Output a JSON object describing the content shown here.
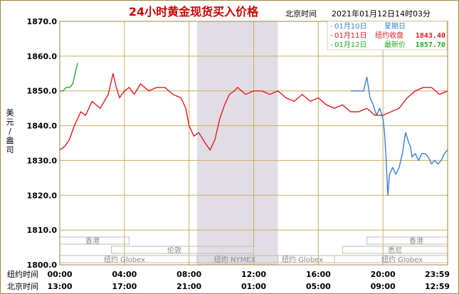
{
  "header": {
    "title": "24小时黄金现货买入价格",
    "timezone_label": "北京时间",
    "timestamp": "2021年01月12日14时03分"
  },
  "legend": [
    {
      "date": "01月10日",
      "label": "星期日",
      "value": "",
      "color": "#3a7fd8"
    },
    {
      "date": "01月11日",
      "label": "纽约收盘",
      "value": "1843.40",
      "color": "#e01b24"
    },
    {
      "date": "01月12日",
      "label": "最新价",
      "value": "1857.70",
      "color": "#22aa22"
    }
  ],
  "axis": {
    "ylabel": "美元/盎司",
    "row1_label": "纽约时间",
    "row2_label": "北京时间"
  },
  "markets": [
    {
      "name": "香港"
    },
    {
      "name": "纽约 Globex"
    },
    {
      "name": "伦敦"
    },
    {
      "name": "纽约 NYMEX"
    },
    {
      "name": "纽约 Globex"
    },
    {
      "name": "香港"
    },
    {
      "name": "悉尼"
    },
    {
      "name": "纽约 Globex"
    }
  ],
  "colors": {
    "frame": "#9a8a40",
    "grid": "#c8b060",
    "shade": "#e2dde5",
    "red": "#e01b24",
    "blue": "#3a7fd8",
    "green": "#22aa22",
    "title": "#cc0000"
  },
  "chart_data": {
    "type": "line",
    "title": "24小时黄金现货买入价格",
    "ylabel": "美元/盎司",
    "ylim": [
      1800,
      1870
    ],
    "yticks": [
      "1870.0",
      "1860.0",
      "1850.0",
      "1840.0",
      "1830.0",
      "1820.0",
      "1810.0",
      "1800.0"
    ],
    "x_unit": "hours since 00:00 New York",
    "xlim": [
      0,
      24
    ],
    "x_ticks_ny": [
      "00:00",
      "04:00",
      "08:00",
      "12:00",
      "16:00",
      "20:00",
      "23:59"
    ],
    "x_ticks_bj": [
      "13:00",
      "17:00",
      "21:00",
      "01:00",
      "05:00",
      "09:00",
      "12:59"
    ],
    "shaded_range_x": [
      8.5,
      13.5
    ],
    "series": [
      {
        "name": "01月10日",
        "color": "#3a7fd8",
        "x": [
          18.0,
          18.8,
          19.0,
          19.2,
          19.4,
          19.6,
          19.8,
          20.0,
          20.1,
          20.2,
          20.3,
          20.4,
          20.6,
          20.8,
          21.0,
          21.2,
          21.4,
          21.6,
          21.7,
          21.8,
          22.0,
          22.2,
          22.4,
          22.6,
          22.8,
          23.0,
          23.2,
          23.4,
          23.6,
          23.8,
          23.99
        ],
        "y": [
          1850,
          1850,
          1854,
          1848,
          1846,
          1843,
          1845,
          1842,
          1838,
          1830,
          1820,
          1826,
          1828,
          1826,
          1828,
          1832,
          1838,
          1835,
          1834,
          1831,
          1832,
          1830,
          1832,
          1832,
          1831,
          1829,
          1830,
          1829,
          1830,
          1832,
          1833
        ]
      },
      {
        "name": "01月11日",
        "color": "#e01b24",
        "x": [
          0.0,
          0.3,
          0.6,
          0.9,
          1.1,
          1.3,
          1.6,
          2.0,
          2.5,
          3.0,
          3.3,
          3.5,
          3.7,
          4.0,
          4.3,
          4.6,
          5.0,
          5.5,
          6.0,
          6.5,
          7.0,
          7.5,
          7.8,
          8.0,
          8.3,
          8.6,
          9.0,
          9.3,
          9.6,
          9.9,
          10.2,
          10.5,
          10.8,
          11.0,
          11.5,
          12.0,
          12.5,
          13.0,
          13.5,
          14.0,
          14.5,
          15.0,
          15.5,
          16.0,
          16.5,
          17.0,
          17.5,
          17.99,
          18.0,
          18.5,
          19.0,
          19.5,
          20.0,
          20.5,
          21.0,
          21.5,
          22.0,
          22.5,
          23.0,
          23.5,
          23.99
        ],
        "y": [
          1833,
          1834,
          1836,
          1840,
          1842,
          1844,
          1843,
          1847,
          1845,
          1849,
          1855,
          1851,
          1848,
          1850,
          1851,
          1849,
          1852,
          1850,
          1851,
          1851,
          1849,
          1848,
          1845,
          1840,
          1837,
          1838,
          1835,
          1833,
          1836,
          1842,
          1846,
          1849,
          1850,
          1851,
          1849,
          1850,
          1850,
          1849,
          1850,
          1848,
          1847,
          1849,
          1847,
          1848,
          1846,
          1845,
          1846,
          1844,
          1844,
          1844,
          1845,
          1843,
          1843,
          1844,
          1845,
          1848,
          1850,
          1851,
          1851,
          1849,
          1850
        ]
      },
      {
        "name": "01月12日",
        "color": "#22aa22",
        "x": [
          0.0,
          0.2,
          0.4,
          0.6,
          0.8,
          1.0,
          1.1
        ],
        "y": [
          1850,
          1850,
          1851,
          1851,
          1852,
          1856,
          1858
        ]
      }
    ]
  }
}
